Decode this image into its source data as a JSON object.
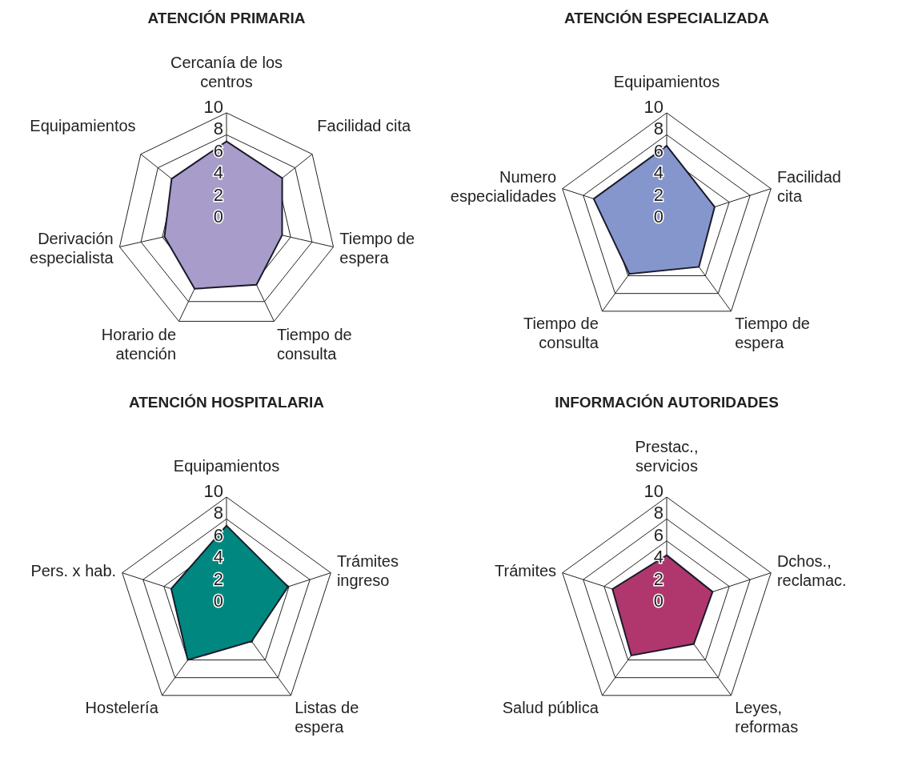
{
  "chart_data": [
    {
      "type": "radar",
      "title": "ATENCIÓN PRIMARIA",
      "categories": [
        "Cercanía de los\ncentros",
        "Facilidad cita",
        "Tiempo de\nespera",
        "Tiempo de\nconsulta",
        "Horario de\natención",
        "Derivación\nespecialista",
        "Equipamientos"
      ],
      "series": [
        {
          "color": "#a89ccb",
          "values": [
            7.4,
            6.5,
            5.2,
            6.3,
            6.7,
            5.8,
            6.4
          ]
        }
      ],
      "ylim": [
        0,
        10
      ],
      "yticks": [
        0,
        2,
        4,
        6,
        8,
        10
      ],
      "grid": true,
      "legend": false
    },
    {
      "type": "radar",
      "title": "ATENCIÓN ESPECIALIZADA",
      "categories": [
        "Equipamientos",
        "Facilidad\ncita",
        "Tiempo de\nespera",
        "Tiempo de\nconsulta",
        "Numero\nespecialidades"
      ],
      "series": [
        {
          "color": "#8496cc",
          "values": [
            7.0,
            4.6,
            5.0,
            5.8,
            7.0
          ]
        }
      ],
      "ylim": [
        0,
        10
      ],
      "yticks": [
        0,
        2,
        4,
        6,
        8,
        10
      ],
      "grid": true,
      "legend": false
    },
    {
      "type": "radar",
      "title": "ATENCIÓN HOSPITALARIA",
      "categories": [
        "Equipamientos",
        "Trámites\ningreso",
        "Listas de\nespera",
        "Hostelería",
        "Pers. x hab."
      ],
      "series": [
        {
          "color": "#00877f",
          "values": [
            7.4,
            5.9,
            3.9,
            6.0,
            5.3
          ]
        }
      ],
      "ylim": [
        0,
        10
      ],
      "yticks": [
        0,
        2,
        4,
        6,
        8,
        10
      ],
      "grid": true,
      "legend": false
    },
    {
      "type": "radar",
      "title": "INFORMACIÓN AUTORIDADES",
      "categories": [
        "Prestac.,\nservicios",
        "Dchos.,\nreclamac.",
        "Leyes,\nreformas",
        "Salud pública",
        "Trámites"
      ],
      "series": [
        {
          "color": "#b0376e",
          "values": [
            4.7,
            4.4,
            4.2,
            5.5,
            5.2
          ]
        }
      ],
      "ylim": [
        0,
        10
      ],
      "yticks": [
        0,
        2,
        4,
        6,
        8,
        10
      ],
      "grid": true,
      "legend": false
    }
  ]
}
